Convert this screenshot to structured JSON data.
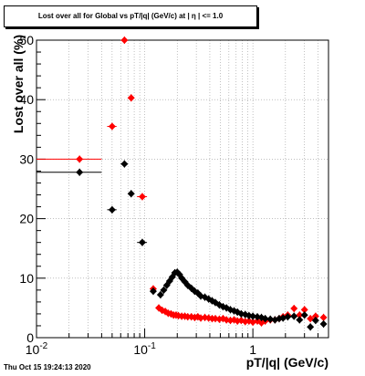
{
  "chart_data": {
    "type": "scatter",
    "title": "Lost over all for Global vs pT/|q| (GeV/c) at |  η | <= 1.0",
    "xlabel": "pT/|q| (GeV/c)",
    "ylabel": "Lost over all (%)",
    "x_scale": "log",
    "xlim": [
      0.01,
      5.0
    ],
    "ylim": [
      0,
      50
    ],
    "x_ticks": [
      "10^-2",
      "10^-1",
      "1"
    ],
    "y_ticks": [
      "0",
      "10",
      "20",
      "30",
      "40",
      "50"
    ],
    "grid": true,
    "legend": false,
    "timestamp": "Thu Oct 15 19:24:13 2020",
    "series": [
      {
        "color": "#ff0000",
        "points": [
          {
            "x": 0.025,
            "y": 30.0,
            "xerr": [
              0.01,
              0.04
            ]
          },
          {
            "x": 0.05,
            "y": 35.5,
            "xerr": [
              0.045,
              0.055
            ]
          },
          {
            "x": 0.065,
            "y": 50.0,
            "xerr": [
              0.06,
              0.07
            ]
          },
          {
            "x": 0.075,
            "y": 40.3,
            "xerr": [
              0.07,
              0.08
            ]
          },
          {
            "x": 0.095,
            "y": 23.7,
            "xerr": [
              0.085,
              0.105
            ]
          },
          {
            "x": 0.12,
            "y": 8.2
          },
          {
            "x": 0.135,
            "y": 5.0
          },
          {
            "x": 0.145,
            "y": 4.6
          },
          {
            "x": 0.155,
            "y": 4.4
          },
          {
            "x": 0.165,
            "y": 4.1
          },
          {
            "x": 0.175,
            "y": 4.0
          },
          {
            "x": 0.185,
            "y": 3.8
          },
          {
            "x": 0.195,
            "y": 3.8
          },
          {
            "x": 0.205,
            "y": 3.7
          },
          {
            "x": 0.22,
            "y": 3.6
          },
          {
            "x": 0.235,
            "y": 3.6
          },
          {
            "x": 0.25,
            "y": 3.5
          },
          {
            "x": 0.27,
            "y": 3.5
          },
          {
            "x": 0.29,
            "y": 3.4
          },
          {
            "x": 0.31,
            "y": 3.5
          },
          {
            "x": 0.33,
            "y": 3.3
          },
          {
            "x": 0.36,
            "y": 3.4
          },
          {
            "x": 0.39,
            "y": 3.3
          },
          {
            "x": 0.42,
            "y": 3.2
          },
          {
            "x": 0.45,
            "y": 3.2
          },
          {
            "x": 0.49,
            "y": 3.1
          },
          {
            "x": 0.53,
            "y": 3.2
          },
          {
            "x": 0.57,
            "y": 3.0
          },
          {
            "x": 0.62,
            "y": 2.9
          },
          {
            "x": 0.67,
            "y": 3.0
          },
          {
            "x": 0.72,
            "y": 2.8
          },
          {
            "x": 0.78,
            "y": 2.9
          },
          {
            "x": 0.85,
            "y": 2.7
          },
          {
            "x": 0.92,
            "y": 2.8
          },
          {
            "x": 1.0,
            "y": 2.6
          },
          {
            "x": 1.1,
            "y": 2.8
          },
          {
            "x": 1.2,
            "y": 2.5
          },
          {
            "x": 1.3,
            "y": 2.8
          },
          {
            "x": 1.45,
            "y": 3.0
          },
          {
            "x": 1.6,
            "y": 3.0
          },
          {
            "x": 1.75,
            "y": 3.2
          },
          {
            "x": 1.9,
            "y": 3.5
          },
          {
            "x": 2.1,
            "y": 3.8
          },
          {
            "x": 2.4,
            "y": 4.9
          },
          {
            "x": 2.7,
            "y": 3.8
          },
          {
            "x": 3.0,
            "y": 4.7
          },
          {
            "x": 3.4,
            "y": 3.2
          },
          {
            "x": 3.8,
            "y": 3.6
          },
          {
            "x": 4.5,
            "y": 3.4
          }
        ]
      },
      {
        "color": "#000000",
        "points": [
          {
            "x": 0.025,
            "y": 27.8,
            "xerr": [
              0.01,
              0.04
            ]
          },
          {
            "x": 0.05,
            "y": 21.5,
            "xerr": [
              0.045,
              0.055
            ]
          },
          {
            "x": 0.065,
            "y": 29.2,
            "xerr": [
              0.06,
              0.07
            ]
          },
          {
            "x": 0.075,
            "y": 24.2,
            "xerr": [
              0.07,
              0.08
            ]
          },
          {
            "x": 0.095,
            "y": 16.0,
            "xerr": [
              0.085,
              0.105
            ]
          },
          {
            "x": 0.12,
            "y": 7.8
          },
          {
            "x": 0.14,
            "y": 7.2
          },
          {
            "x": 0.15,
            "y": 8.0
          },
          {
            "x": 0.16,
            "y": 8.8
          },
          {
            "x": 0.17,
            "y": 9.5
          },
          {
            "x": 0.18,
            "y": 10.2
          },
          {
            "x": 0.19,
            "y": 10.9
          },
          {
            "x": 0.2,
            "y": 11.0
          },
          {
            "x": 0.21,
            "y": 10.6
          },
          {
            "x": 0.22,
            "y": 10.0
          },
          {
            "x": 0.235,
            "y": 9.4
          },
          {
            "x": 0.25,
            "y": 8.8
          },
          {
            "x": 0.27,
            "y": 8.3
          },
          {
            "x": 0.29,
            "y": 7.8
          },
          {
            "x": 0.31,
            "y": 7.5
          },
          {
            "x": 0.33,
            "y": 7.0
          },
          {
            "x": 0.36,
            "y": 6.8
          },
          {
            "x": 0.39,
            "y": 6.5
          },
          {
            "x": 0.42,
            "y": 6.2
          },
          {
            "x": 0.45,
            "y": 5.9
          },
          {
            "x": 0.49,
            "y": 5.5
          },
          {
            "x": 0.53,
            "y": 5.2
          },
          {
            "x": 0.57,
            "y": 5.0
          },
          {
            "x": 0.62,
            "y": 4.7
          },
          {
            "x": 0.67,
            "y": 4.5
          },
          {
            "x": 0.72,
            "y": 4.3
          },
          {
            "x": 0.78,
            "y": 4.0
          },
          {
            "x": 0.85,
            "y": 3.9
          },
          {
            "x": 0.92,
            "y": 3.7
          },
          {
            "x": 1.0,
            "y": 3.6
          },
          {
            "x": 1.1,
            "y": 3.5
          },
          {
            "x": 1.2,
            "y": 3.4
          },
          {
            "x": 1.3,
            "y": 3.2
          },
          {
            "x": 1.45,
            "y": 3.1
          },
          {
            "x": 1.6,
            "y": 3.0
          },
          {
            "x": 1.75,
            "y": 3.2
          },
          {
            "x": 1.9,
            "y": 3.3
          },
          {
            "x": 2.1,
            "y": 3.5
          },
          {
            "x": 2.4,
            "y": 3.6
          },
          {
            "x": 2.7,
            "y": 3.0
          },
          {
            "x": 3.0,
            "y": 3.8
          },
          {
            "x": 3.4,
            "y": 1.8
          },
          {
            "x": 3.8,
            "y": 2.9
          },
          {
            "x": 4.5,
            "y": 2.3
          }
        ]
      }
    ]
  }
}
